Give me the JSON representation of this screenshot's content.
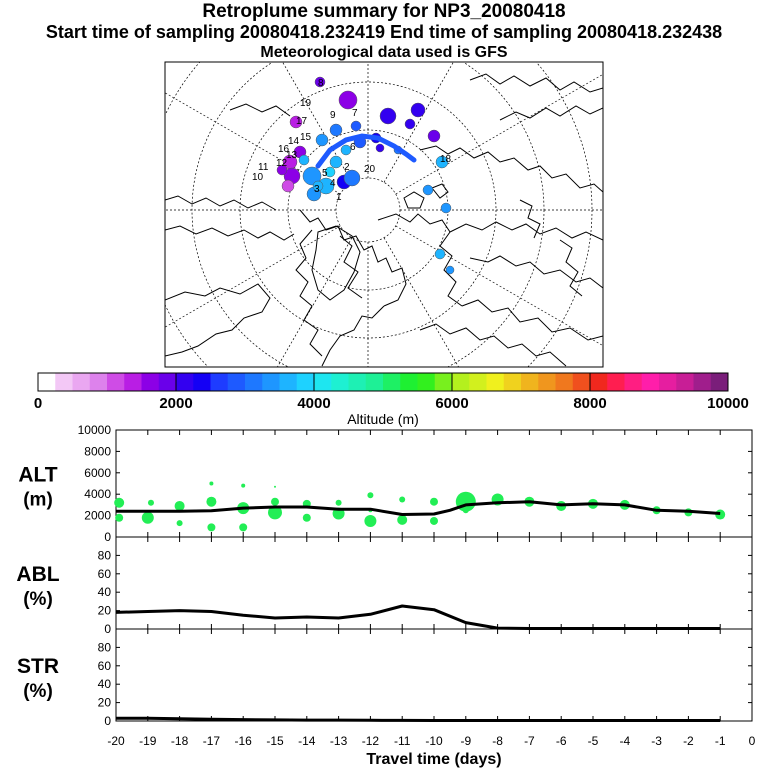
{
  "header": {
    "title": "Retroplume summary for NP3_20080418",
    "sampling_line": "Start time of sampling 20080418.232419     End time of sampling 20080418.232438",
    "met_line": "Meteorological data used is GFS"
  },
  "map": {
    "description_labels": [
      "20",
      "19",
      "17",
      "14",
      "13",
      "12",
      "11",
      "10",
      "9",
      "8",
      "7",
      "6",
      "5",
      "4",
      "3",
      "2",
      "1",
      "18",
      "16",
      "15"
    ]
  },
  "colorbar": {
    "tick_labels": [
      "0",
      "2000",
      "4000",
      "6000",
      "8000",
      "10000"
    ],
    "ticks": [
      0,
      2000,
      4000,
      6000,
      8000,
      10000
    ],
    "label": "Altitude (m)",
    "colors": [
      "#ffffff",
      "#f3c8f6",
      "#eaa7f1",
      "#dd82ec",
      "#cf4ce6",
      "#b91ee4",
      "#8c00e6",
      "#6a00ea",
      "#3300f0",
      "#1400f5",
      "#1e3cff",
      "#1e5aff",
      "#1e78ff",
      "#1e96ff",
      "#1eb4ff",
      "#1ed2ff",
      "#1ee6f0",
      "#1ef0d2",
      "#1ef0b4",
      "#1ef096",
      "#1ef064",
      "#1ef032",
      "#32f01e",
      "#78f01e",
      "#b4f01e",
      "#d2f01e",
      "#f0f01e",
      "#f0d21e",
      "#f0b41e",
      "#f0961e",
      "#f0781e",
      "#f0501e",
      "#f0281e",
      "#ff1e50",
      "#ff1e82",
      "#ff1eaa",
      "#e61ea0",
      "#c81e96",
      "#a01e8c",
      "#7a1e7a"
    ]
  },
  "chart_data": {
    "type": "line",
    "x_label": "Travel time (days)",
    "x_ticks": [
      -20,
      -19,
      -18,
      -17,
      -16,
      -15,
      -14,
      -13,
      -12,
      -11,
      -10,
      -9,
      -8,
      -7,
      -6,
      -5,
      -4,
      -3,
      -2,
      -1,
      0
    ],
    "x_tick_labels": [
      "-20",
      "-19",
      "-18",
      "-17",
      "-16",
      "-15",
      "-14",
      "-13",
      "-12",
      "-11",
      "-10",
      "-9",
      "-8",
      "-7",
      "-6",
      "-5",
      "-4",
      "-3",
      "-2",
      "-1",
      "0"
    ],
    "xlim": [
      -20,
      0
    ],
    "panels": [
      {
        "name": "alt",
        "label_line1": "ALT",
        "label_line2": "(m)",
        "ylim": [
          0,
          10000
        ],
        "y_ticks": [
          0,
          2000,
          4000,
          6000,
          8000,
          10000
        ],
        "y_tick_labels": [
          "0",
          "2000",
          "4000",
          "6000",
          "8000",
          "10000"
        ],
        "mean_x": [
          -20,
          -19,
          -18,
          -17,
          -16,
          -15,
          -14,
          -13,
          -12,
          -11,
          -10,
          -9.5,
          -9,
          -8,
          -7,
          -6,
          -5,
          -4,
          -3,
          -2,
          -1
        ],
        "mean_y": [
          2400,
          2400,
          2400,
          2450,
          2700,
          2800,
          2800,
          2600,
          2600,
          2100,
          2150,
          2500,
          3000,
          3200,
          3300,
          3000,
          3100,
          3000,
          2500,
          2400,
          2200
        ],
        "cluster_points": [
          {
            "x": -19.9,
            "y": 3200,
            "r": 5
          },
          {
            "x": -19.9,
            "y": 1800,
            "r": 4
          },
          {
            "x": -19.0,
            "y": 1800,
            "r": 6
          },
          {
            "x": -18.9,
            "y": 3200,
            "r": 3
          },
          {
            "x": -18.0,
            "y": 2900,
            "r": 5
          },
          {
            "x": -18.0,
            "y": 1300,
            "r": 3
          },
          {
            "x": -17.0,
            "y": 3300,
            "r": 5
          },
          {
            "x": -17.0,
            "y": 900,
            "r": 4
          },
          {
            "x": -17.0,
            "y": 5000,
            "r": 2
          },
          {
            "x": -16.0,
            "y": 2700,
            "r": 6
          },
          {
            "x": -16.0,
            "y": 4800,
            "r": 2
          },
          {
            "x": -16.0,
            "y": 900,
            "r": 4
          },
          {
            "x": -15.0,
            "y": 3300,
            "r": 4
          },
          {
            "x": -15.0,
            "y": 2300,
            "r": 7
          },
          {
            "x": -15.0,
            "y": 4700,
            "r": 1
          },
          {
            "x": -14.0,
            "y": 3100,
            "r": 4
          },
          {
            "x": -14.0,
            "y": 1800,
            "r": 4
          },
          {
            "x": -13.0,
            "y": 2200,
            "r": 6
          },
          {
            "x": -13.0,
            "y": 3200,
            "r": 3
          },
          {
            "x": -12.0,
            "y": 1500,
            "r": 6
          },
          {
            "x": -12.0,
            "y": 3900,
            "r": 3
          },
          {
            "x": -12.0,
            "y": 2500,
            "r": 2
          },
          {
            "x": -11.0,
            "y": 1600,
            "r": 5
          },
          {
            "x": -11.0,
            "y": 3500,
            "r": 3
          },
          {
            "x": -10.0,
            "y": 3300,
            "r": 4
          },
          {
            "x": -10.0,
            "y": 1500,
            "r": 4
          },
          {
            "x": -9.0,
            "y": 3300,
            "r": 10
          },
          {
            "x": -8.0,
            "y": 3500,
            "r": 6
          },
          {
            "x": -7.0,
            "y": 3300,
            "r": 5
          },
          {
            "x": -6.0,
            "y": 2900,
            "r": 5
          },
          {
            "x": -5.0,
            "y": 3100,
            "r": 5
          },
          {
            "x": -4.0,
            "y": 3000,
            "r": 5
          },
          {
            "x": -3.0,
            "y": 2500,
            "r": 4
          },
          {
            "x": -2.0,
            "y": 2300,
            "r": 4
          },
          {
            "x": -1.0,
            "y": 2100,
            "r": 5
          },
          {
            "x": -9.0,
            "y": 2500,
            "r": 3
          }
        ]
      },
      {
        "name": "abl",
        "label_line1": "ABL",
        "label_line2": "(%)",
        "ylim": [
          0,
          100
        ],
        "y_ticks": [
          0,
          20,
          40,
          60,
          80
        ],
        "y_tick_labels": [
          "0",
          "20",
          "40",
          "60",
          "80"
        ],
        "mean_x": [
          -20,
          -19,
          -18,
          -17,
          -16,
          -15,
          -14,
          -13,
          -12,
          -11,
          -10,
          -9,
          -8,
          -7,
          -6,
          -5,
          -4,
          -3,
          -2,
          -1
        ],
        "mean_y": [
          18,
          19,
          20,
          19,
          15,
          12,
          13,
          12,
          16,
          25,
          21,
          7,
          1,
          0.5,
          0.5,
          0.5,
          0.5,
          0.5,
          0.5,
          0.5
        ]
      },
      {
        "name": "str",
        "label_line1": "STR",
        "label_line2": "(%)",
        "ylim": [
          0,
          100
        ],
        "y_ticks": [
          0,
          20,
          40,
          60,
          80
        ],
        "y_tick_labels": [
          "0",
          "20",
          "40",
          "60",
          "80"
        ],
        "mean_x": [
          -20,
          -19,
          -18,
          -17,
          -16,
          -15,
          -14,
          -13,
          -12,
          -11,
          -10,
          -9,
          -8,
          -7,
          -6,
          -5,
          -4,
          -3,
          -2,
          -1
        ],
        "mean_y": [
          3,
          3,
          2.5,
          2,
          1.5,
          1.2,
          1,
          1,
          0.8,
          0.6,
          0.5,
          0.5,
          0.5,
          0.5,
          0.5,
          0.5,
          0.5,
          0.5,
          0.5,
          0.5
        ]
      }
    ]
  }
}
